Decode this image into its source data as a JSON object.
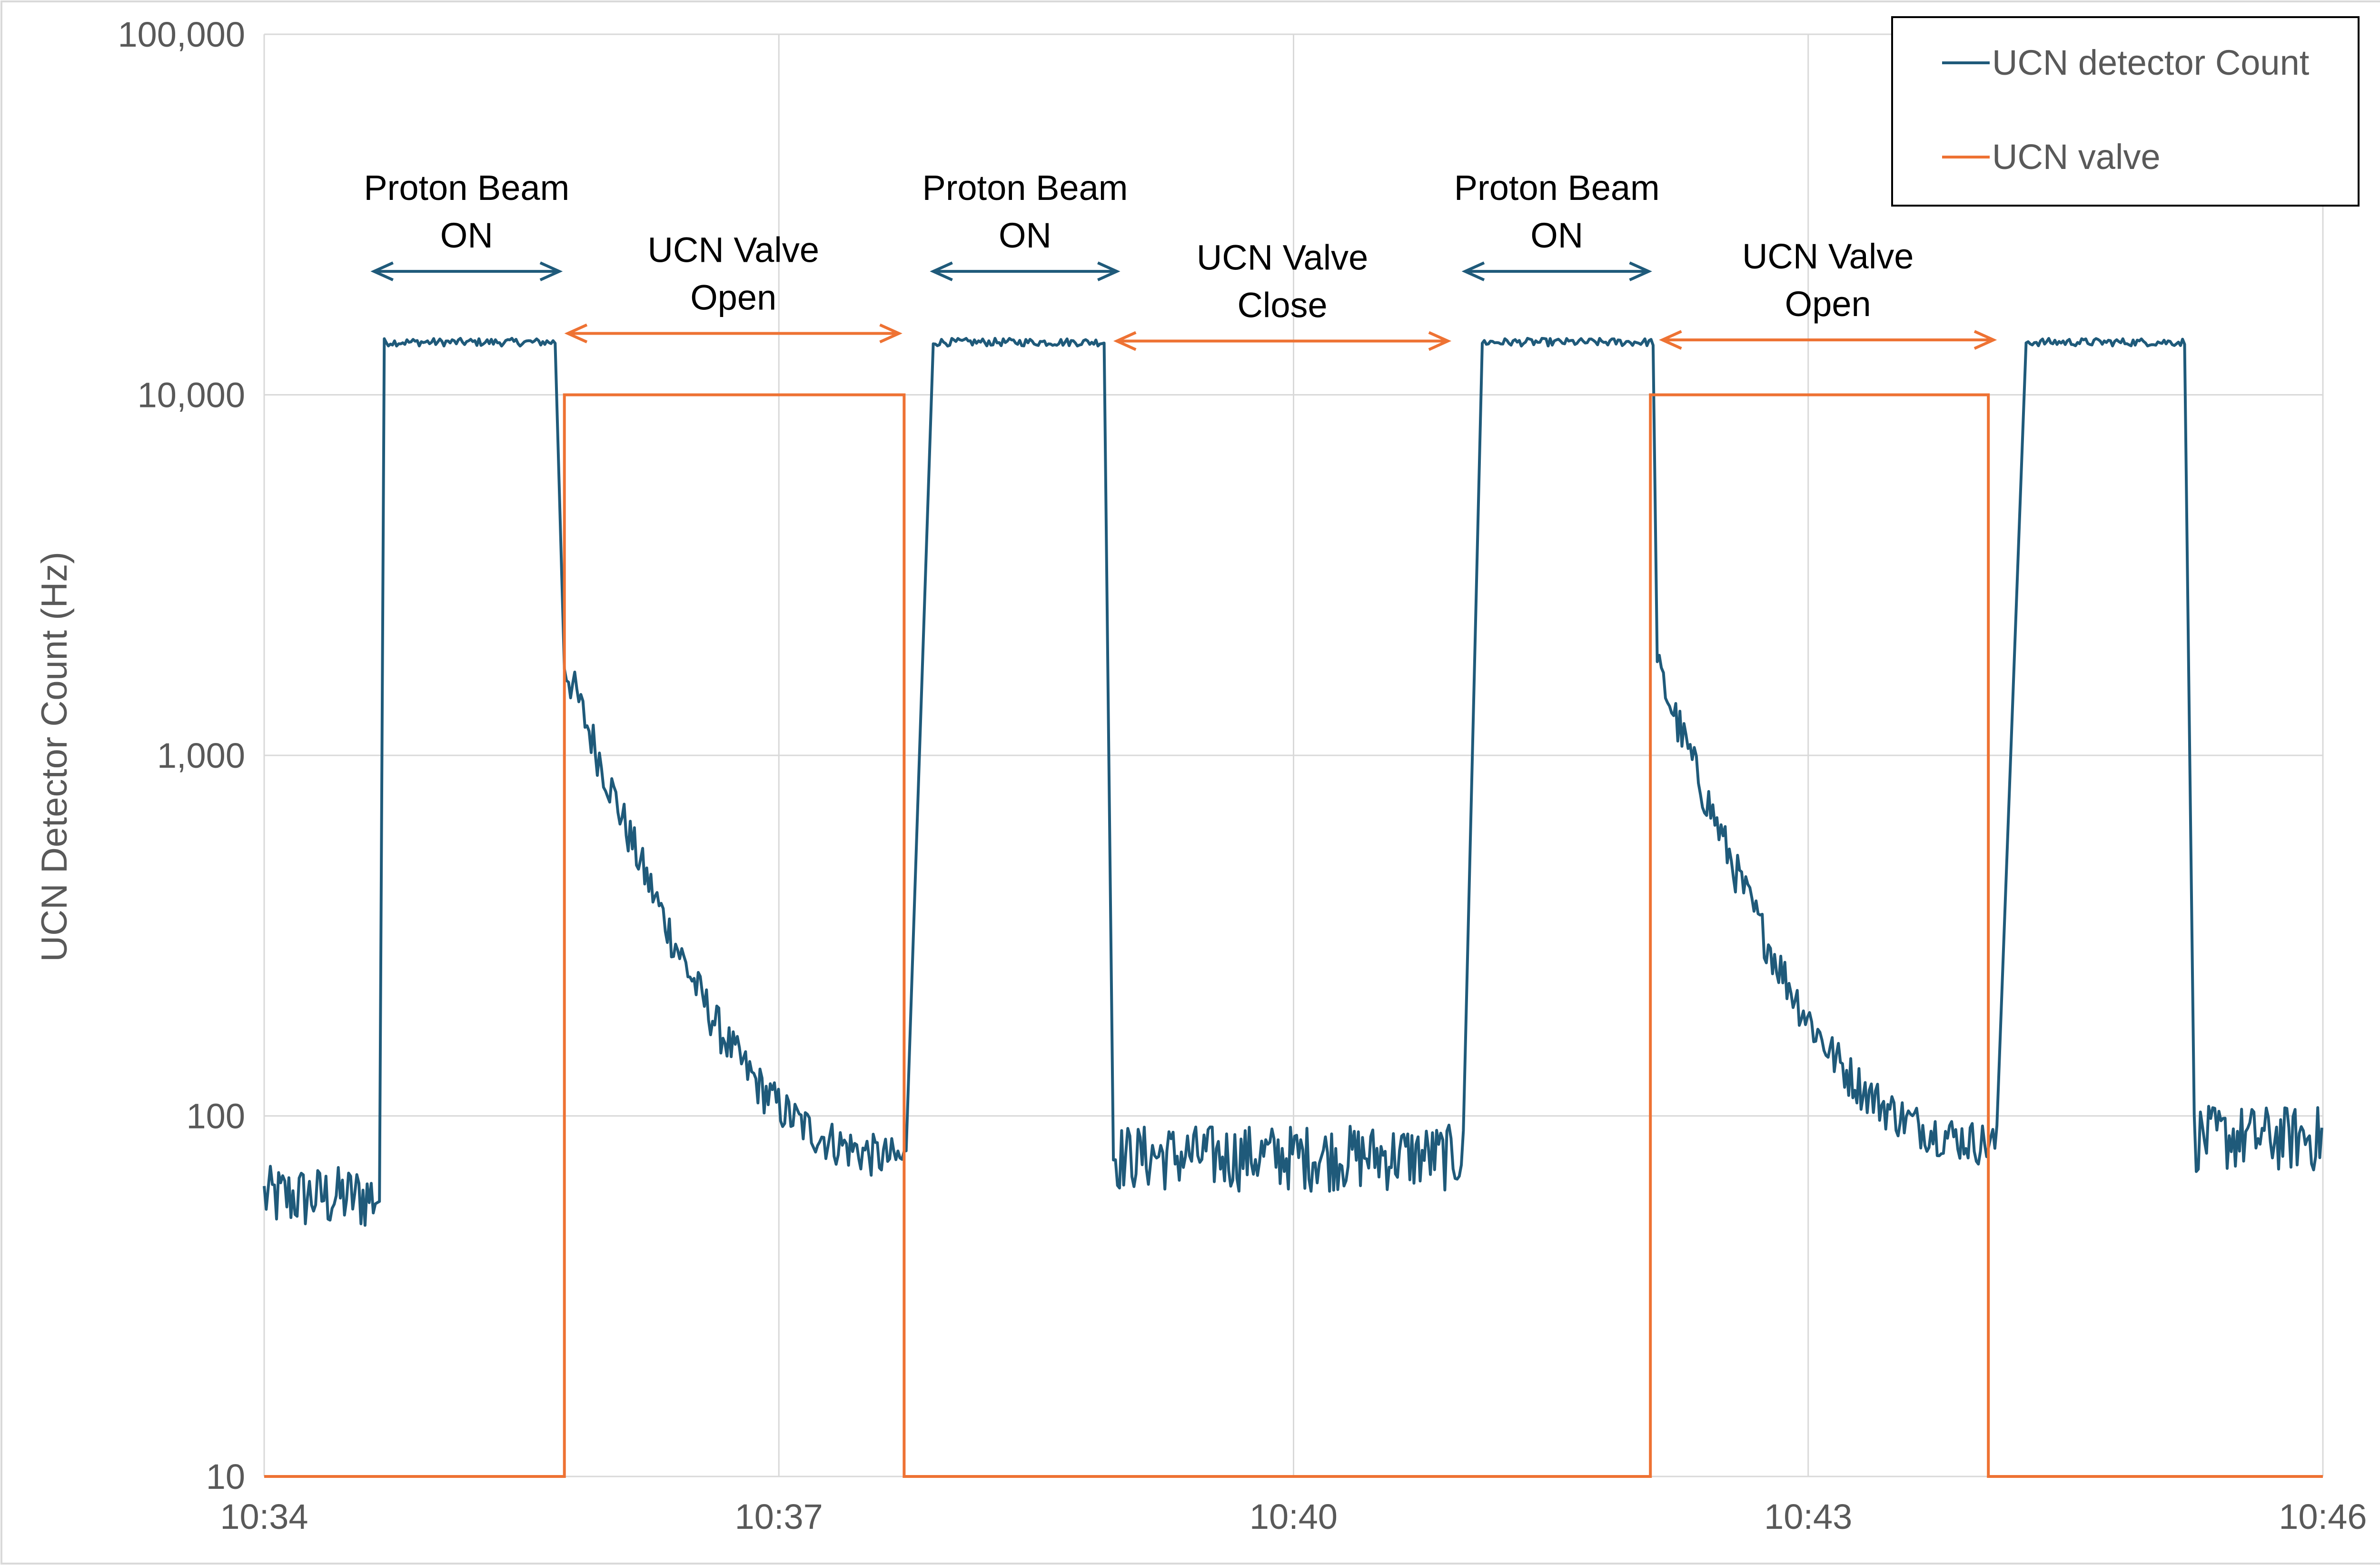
{
  "chart_data": {
    "type": "line",
    "title": "",
    "xlabel": "",
    "ylabel": "UCN Detector Count (Hz)",
    "yscale": "log",
    "ylim": [
      10,
      100000
    ],
    "xlim_minutes": [
      0,
      12
    ],
    "grid": true,
    "legend_position": "top-right",
    "y_ticks": [
      {
        "value": 10,
        "label": "10"
      },
      {
        "value": 100,
        "label": "100"
      },
      {
        "value": 1000,
        "label": "1,000"
      },
      {
        "value": 10000,
        "label": "10,000"
      },
      {
        "value": 100000,
        "label": "100,000"
      }
    ],
    "x_ticks": [
      {
        "value": 0,
        "label": "10:34"
      },
      {
        "value": 3,
        "label": "10:37"
      },
      {
        "value": 6,
        "label": "10:40"
      },
      {
        "value": 9,
        "label": "10:43"
      },
      {
        "value": 12,
        "label": "10:46"
      }
    ],
    "series": [
      {
        "name": "UCN detector Count",
        "color": "#1f5a7a",
        "segments": [
          {
            "kind": "background",
            "x0": 0.0,
            "x1": 0.68,
            "level": 60
          },
          {
            "kind": "plateau",
            "x0": 0.7,
            "x1": 1.7,
            "level": 14000
          },
          {
            "kind": "decay",
            "x0": 1.75,
            "x1": 3.75,
            "start": 1800,
            "floor": 72,
            "tau": 0.32
          },
          {
            "kind": "plateau",
            "x0": 3.9,
            "x1": 4.9,
            "level": 14000
          },
          {
            "kind": "background",
            "x0": 4.95,
            "x1": 7.0,
            "level": 78
          },
          {
            "kind": "plateau",
            "x0": 7.1,
            "x1": 8.1,
            "level": 14000
          },
          {
            "kind": "decay",
            "x0": 8.12,
            "x1": 10.1,
            "start": 1750,
            "floor": 80,
            "tau": 0.32
          },
          {
            "kind": "plateau",
            "x0": 10.27,
            "x1": 11.2,
            "level": 14000
          },
          {
            "kind": "background",
            "x0": 11.25,
            "x1": 12.0,
            "level": 88
          }
        ]
      },
      {
        "name": "UCN valve",
        "color": "#ee7233",
        "points": [
          [
            0.0,
            10
          ],
          [
            1.75,
            10
          ],
          [
            1.75,
            10000
          ],
          [
            3.73,
            10000
          ],
          [
            3.73,
            10
          ],
          [
            8.08,
            10
          ],
          [
            8.08,
            10000
          ],
          [
            10.05,
            10000
          ],
          [
            10.05,
            10
          ],
          [
            12.0,
            10
          ]
        ]
      }
    ],
    "annotations": [
      {
        "text_lines": [
          "Proton Beam",
          "ON"
        ],
        "x_from": 0.64,
        "x_to": 1.72,
        "arrow_y": 22000,
        "color": "#1f5a7a"
      },
      {
        "text_lines": [
          "UCN Valve",
          "Open"
        ],
        "x_from": 1.77,
        "x_to": 3.7,
        "arrow_y": 14800,
        "color": "#ee7233"
      },
      {
        "text_lines": [
          "Proton Beam",
          "ON"
        ],
        "x_from": 3.9,
        "x_to": 4.97,
        "arrow_y": 22000,
        "color": "#1f5a7a"
      },
      {
        "text_lines": [
          "UCN Valve",
          "Close"
        ],
        "x_from": 4.97,
        "x_to": 6.9,
        "arrow_y": 14100,
        "color": "#ee7233"
      },
      {
        "text_lines": [
          "Proton Beam",
          "ON"
        ],
        "x_from": 7.0,
        "x_to": 8.07,
        "arrow_y": 22000,
        "color": "#1f5a7a"
      },
      {
        "text_lines": [
          "UCN Valve",
          "Open"
        ],
        "x_from": 8.15,
        "x_to": 10.08,
        "arrow_y": 14200,
        "color": "#ee7233"
      }
    ]
  }
}
